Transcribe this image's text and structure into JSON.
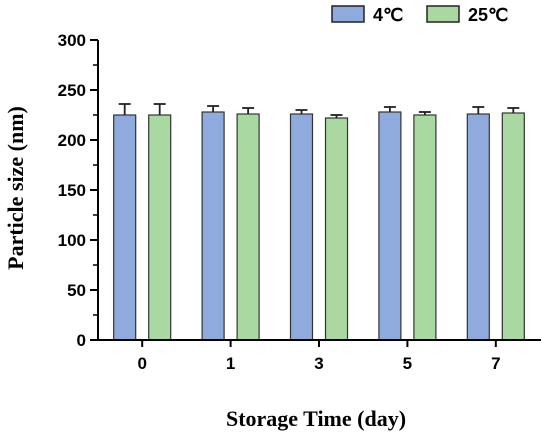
{
  "chart_data": {
    "type": "bar",
    "title": "",
    "xlabel": "Storage Time (day)",
    "ylabel": "Particle size (nm)",
    "categories": [
      "0",
      "1",
      "3",
      "5",
      "7"
    ],
    "ylim": [
      0,
      300
    ],
    "yticks": [
      "0",
      "50",
      "100",
      "150",
      "200",
      "250",
      "300"
    ],
    "legend_position": "top-right",
    "series": [
      {
        "name": "4℃",
        "color": "#8faadc",
        "values": [
          225,
          228,
          226,
          228,
          226
        ],
        "errors": [
          11,
          6,
          4,
          5,
          7
        ]
      },
      {
        "name": "25℃",
        "color": "#a9d9a0",
        "values": [
          225,
          226,
          222,
          225,
          227
        ],
        "errors": [
          11,
          6,
          3,
          3,
          5
        ]
      }
    ]
  }
}
